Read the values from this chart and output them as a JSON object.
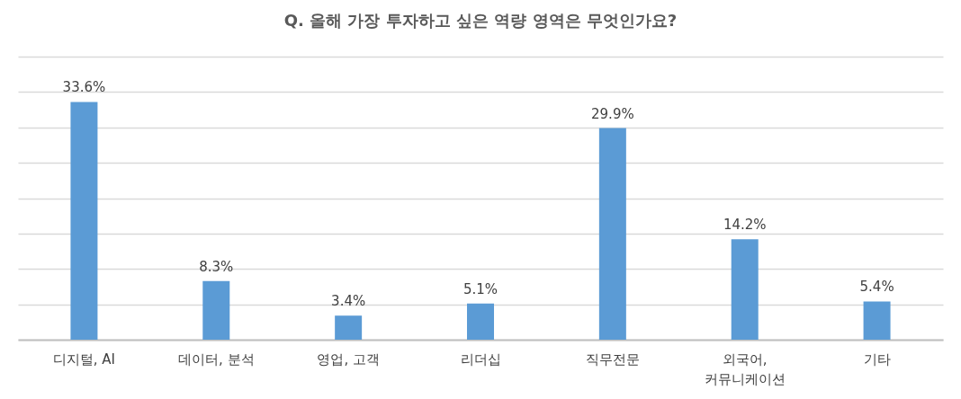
{
  "chart_data": {
    "type": "bar",
    "title": "Q. 올해 가장 투자하고 싶은 역량 영역은 무엇인가요?",
    "categories": [
      "디지털, AI",
      "데이터, 분석",
      "영업, 고객",
      "리더십",
      "직무전문",
      "외국어, 커뮤니케이션",
      "기타"
    ],
    "values": [
      33.6,
      8.3,
      3.4,
      5.1,
      29.9,
      14.2,
      5.4
    ],
    "value_labels": [
      "33.6%",
      "8.3%",
      "3.4%",
      "5.1%",
      "29.9%",
      "14.2%",
      "5.4%"
    ],
    "color": "#5b9bd5",
    "ylim": [
      0,
      40
    ],
    "yticks": [
      {
        "value": 0,
        "label": null
      },
      {
        "value": 5,
        "label": null
      },
      {
        "value": 10,
        "label": null
      },
      {
        "value": 15,
        "label": null
      },
      {
        "value": 20,
        "label": null
      },
      {
        "value": 25,
        "label": null
      },
      {
        "value": 30,
        "label": null
      },
      {
        "value": 35,
        "label": null
      },
      {
        "value": 40,
        "label": null
      }
    ],
    "grid": "y",
    "tick_labels": "x"
  }
}
